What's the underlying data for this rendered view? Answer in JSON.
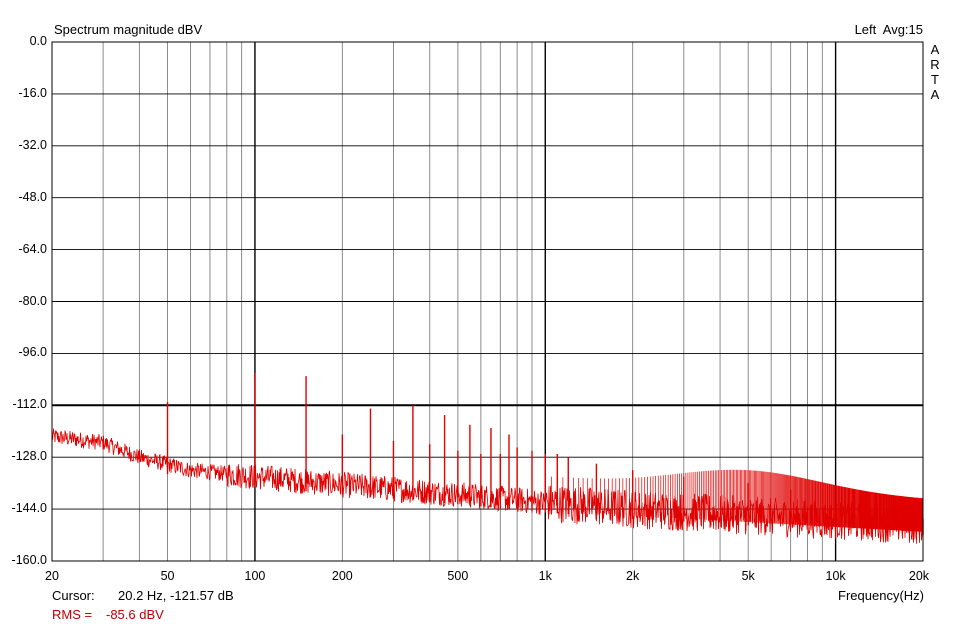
{
  "chart_data": {
    "type": "line",
    "title": "Spectrum magnitude dBV",
    "channel_info": "Left  Avg:15",
    "brand_letters": [
      "A",
      "R",
      "T",
      "A"
    ],
    "xlabel": "Frequency(Hz)",
    "ylabel": "",
    "x_scale": "log",
    "xlim": [
      20,
      20000
    ],
    "ylim": [
      -160,
      0
    ],
    "grid": true,
    "y_ticks": [
      0,
      -16,
      -32,
      -48,
      -64,
      -80,
      -96,
      -112,
      -128,
      -144,
      -160
    ],
    "y_tick_labels": [
      "0.0",
      "-16.0",
      "-32.0",
      "-48.0",
      "-64.0",
      "-80.0",
      "-96.0",
      "-112.0",
      "-128.0",
      "-144.0",
      "-160.0"
    ],
    "x_ticks": [
      20,
      50,
      100,
      200,
      500,
      1000,
      2000,
      5000,
      10000,
      20000
    ],
    "x_tick_labels": [
      "20",
      "50",
      "100",
      "200",
      "500",
      "1k",
      "2k",
      "5k",
      "10k",
      "20k"
    ],
    "reference_line_db": -112,
    "series": [
      {
        "color": "#e00000",
        "noise_floor": [
          {
            "x": 20,
            "y": -121.6
          },
          {
            "x": 30,
            "y": -123.5
          },
          {
            "x": 40,
            "y": -128
          },
          {
            "x": 60,
            "y": -132
          },
          {
            "x": 100,
            "y": -134
          },
          {
            "x": 200,
            "y": -136.5
          },
          {
            "x": 500,
            "y": -139.5
          },
          {
            "x": 1000,
            "y": -142
          },
          {
            "x": 2000,
            "y": -144
          },
          {
            "x": 5000,
            "y": -146
          },
          {
            "x": 10000,
            "y": -147.5
          },
          {
            "x": 20000,
            "y": -149
          }
        ],
        "harmonic_peaks": [
          {
            "x": 50,
            "y": -111
          },
          {
            "x": 100,
            "y": -102
          },
          {
            "x": 150,
            "y": -103
          },
          {
            "x": 200,
            "y": -121
          },
          {
            "x": 250,
            "y": -113
          },
          {
            "x": 300,
            "y": -123
          },
          {
            "x": 350,
            "y": -112
          },
          {
            "x": 400,
            "y": -124
          },
          {
            "x": 450,
            "y": -115
          },
          {
            "x": 500,
            "y": -126
          },
          {
            "x": 550,
            "y": -118
          },
          {
            "x": 600,
            "y": -127
          },
          {
            "x": 650,
            "y": -119
          },
          {
            "x": 700,
            "y": -127
          },
          {
            "x": 750,
            "y": -121
          },
          {
            "x": 800,
            "y": -125
          },
          {
            "x": 900,
            "y": -126
          },
          {
            "x": 1000,
            "y": -127
          },
          {
            "x": 1100,
            "y": -127
          },
          {
            "x": 1200,
            "y": -128
          },
          {
            "x": 1500,
            "y": -130
          },
          {
            "x": 2000,
            "y": -132
          },
          {
            "x": 3000,
            "y": -134
          },
          {
            "x": 5000,
            "y": -136
          },
          {
            "x": 7000,
            "y": -138
          },
          {
            "x": 10000,
            "y": -142
          },
          {
            "x": 15000,
            "y": -146
          },
          {
            "x": 20000,
            "y": -147
          }
        ]
      }
    ]
  },
  "footer": {
    "cursor_label": "Cursor:",
    "cursor_value": "20.2 Hz, -121.57 dB",
    "rms_label": "RMS =",
    "rms_value": "-85.6 dBV",
    "rms_color": "#c00000"
  }
}
